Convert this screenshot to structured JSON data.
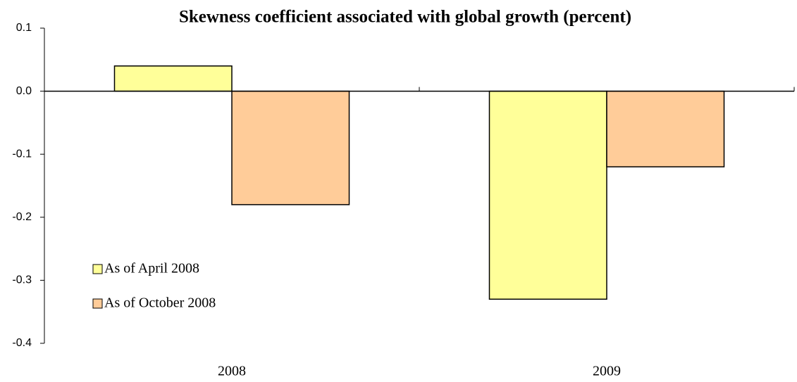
{
  "chart_data": {
    "type": "bar",
    "title": "Skewness coefficient associated with global growth (percent)",
    "categories": [
      "2008",
      "2009"
    ],
    "series": [
      {
        "name": "As of April 2008",
        "color": "#ffff99",
        "values": [
          0.04,
          -0.33
        ]
      },
      {
        "name": "As of October 2008",
        "color": "#ffcc99",
        "values": [
          -0.18,
          -0.12
        ]
      }
    ],
    "ylim": [
      -0.4,
      0.1
    ],
    "yticks": [
      -0.4,
      -0.3,
      -0.2,
      -0.1,
      {
        "value": 0,
        "label": "0.0"
      },
      0.1
    ],
    "grid": false,
    "legend_position": "left"
  }
}
